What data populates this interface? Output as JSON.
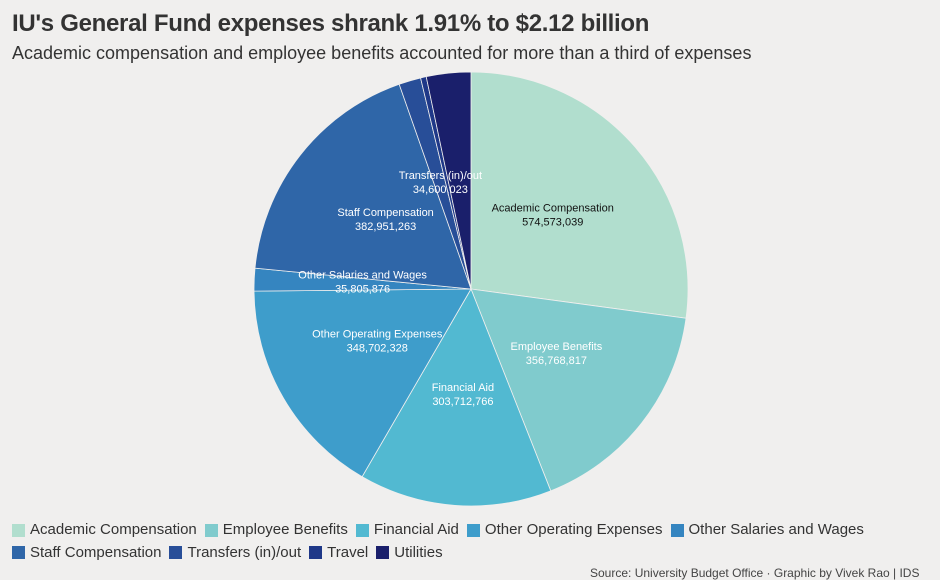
{
  "chart_data": {
    "type": "pie",
    "title": "IU's General Fund expenses shrank 1.91% to $2.12 billion",
    "subtitle": "Academic compensation and employee benefits accounted for more than a third of expenses",
    "slices": [
      {
        "name": "Academic Compensation",
        "value": 574573039,
        "label": "574,573,039",
        "color": "#b1dece",
        "text_color": "#111",
        "show_label": true
      },
      {
        "name": "Employee Benefits",
        "value": 356768817,
        "label": "356,768,817",
        "color": "#80cbcd",
        "text_color": "#fff",
        "show_label": true
      },
      {
        "name": "Financial Aid",
        "value": 303712766,
        "label": "303,712,766",
        "color": "#52b9d1",
        "text_color": "#fff",
        "show_label": true
      },
      {
        "name": "Other Operating Expenses",
        "value": 348702328,
        "label": "348,702,328",
        "color": "#3e9dcb",
        "text_color": "#fff",
        "show_label": true
      },
      {
        "name": "Other Salaries and Wages",
        "value": 35805876,
        "label": "35,805,876",
        "color": "#3585c0",
        "text_color": "#fff",
        "show_label": true
      },
      {
        "name": "Staff Compensation",
        "value": 382951263,
        "label": "382,951,263",
        "color": "#2f66a8",
        "text_color": "#fff",
        "show_label": true
      },
      {
        "name": "Transfers (in)/out",
        "value": 34600023,
        "label": "34,600,023",
        "color": "#284e98",
        "text_color": "#fff",
        "show_label": true
      },
      {
        "name": "Travel",
        "value": 9000000,
        "label": "",
        "color": "#1f3888",
        "text_color": "#fff",
        "show_label": false
      },
      {
        "name": "Utilities",
        "value": 70000000,
        "label": "",
        "color": "#1a1f6b",
        "text_color": "#fff",
        "show_label": false
      }
    ],
    "legend_position": "bottom-left",
    "source": "Source: University Budget Office · Graphic by Vivek Rao | IDS"
  }
}
